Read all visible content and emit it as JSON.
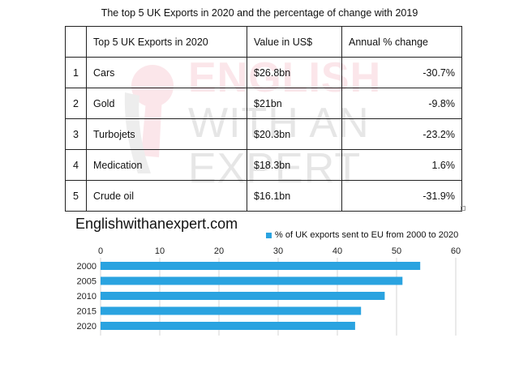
{
  "watermark": {
    "line1": "ENGLISH",
    "line2": "WITH AN",
    "line3": "EXPERT",
    "colors": {
      "accent": "#f7c8d0",
      "gray": "#e2e2e2"
    }
  },
  "table": {
    "title": "The top 5 UK Exports in 2020 and the percentage of change with 2019",
    "headers": [
      "",
      "Top 5 UK Exports in 2020",
      "Value in US$",
      "Annual % change"
    ],
    "rows": [
      {
        "rank": "1",
        "item": "Cars",
        "value": "$26.8bn",
        "change": "-30.7%"
      },
      {
        "rank": "2",
        "item": "Gold",
        "value": "$21bn",
        "change": "-9.8%"
      },
      {
        "rank": "3",
        "item": "Turbojets",
        "value": "$20.3bn",
        "change": "-23.2%"
      },
      {
        "rank": "4",
        "item": "Medication",
        "value": "$18.3bn",
        "change": "1.6%"
      },
      {
        "rank": "5",
        "item": "Crude oil",
        "value": "$16.1bn",
        "change": "-31.9%"
      }
    ]
  },
  "site": {
    "label": "Englishwithanexpert.com"
  },
  "chart_data": [
    {
      "type": "table",
      "title": "The top 5 UK Exports in 2020 and the percentage of change with 2019",
      "columns": [
        "",
        "Top 5 UK Exports in 2020",
        "Value in US$",
        "Annual % change"
      ],
      "rows": [
        [
          "1",
          "Cars",
          "$26.8bn",
          "-30.7%"
        ],
        [
          "2",
          "Gold",
          "$21bn",
          "-9.8%"
        ],
        [
          "3",
          "Turbojets",
          "$20.3bn",
          "-23.2%"
        ],
        [
          "4",
          "Medication",
          "$18.3bn",
          "1.6%"
        ],
        [
          "5",
          "Crude oil",
          "$16.1bn",
          "-31.9%"
        ]
      ]
    },
    {
      "type": "bar",
      "orientation": "horizontal",
      "categories": [
        "2000",
        "2005",
        "2010",
        "2015",
        "2020"
      ],
      "series": [
        {
          "name": "% of UK exports sent to EU from 2000 to 2020",
          "values": [
            54,
            51,
            48,
            44,
            43
          ],
          "color": "#2aa3e0"
        }
      ],
      "xlim": [
        0,
        60
      ],
      "xticks": [
        "0",
        "10",
        "20",
        "30",
        "40",
        "50",
        "60"
      ],
      "grid": true,
      "legend": "top"
    }
  ]
}
